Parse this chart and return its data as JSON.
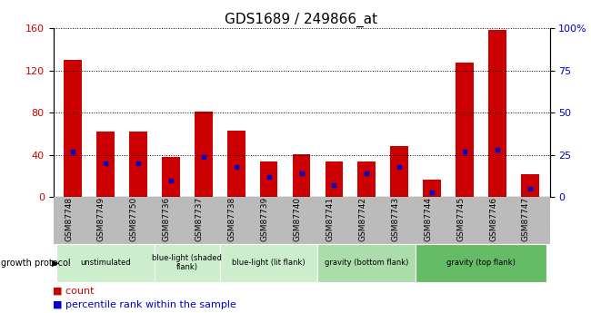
{
  "title": "GDS1689 / 249866_at",
  "samples": [
    "GSM87748",
    "GSM87749",
    "GSM87750",
    "GSM87736",
    "GSM87737",
    "GSM87738",
    "GSM87739",
    "GSM87740",
    "GSM87741",
    "GSM87742",
    "GSM87743",
    "GSM87744",
    "GSM87745",
    "GSM87746",
    "GSM87747"
  ],
  "counts": [
    130,
    62,
    62,
    38,
    81,
    63,
    34,
    41,
    34,
    34,
    48,
    17,
    127,
    158,
    22
  ],
  "percentiles": [
    27,
    20,
    20,
    10,
    24,
    18,
    12,
    14,
    7,
    14,
    18,
    3,
    27,
    28,
    5
  ],
  "ylim_left": [
    0,
    160
  ],
  "ylim_right": [
    0,
    100
  ],
  "yticks_left": [
    0,
    40,
    80,
    120,
    160
  ],
  "yticks_right": [
    0,
    25,
    50,
    75,
    100
  ],
  "yticklabels_right": [
    "0",
    "25",
    "50",
    "75",
    "100%"
  ],
  "bar_color": "#cc0000",
  "dot_color": "#0000cc",
  "bar_width": 0.55,
  "group_info": [
    {
      "samples_idx": [
        0,
        1,
        2
      ],
      "label": "unstimulated",
      "color": "#cceecc"
    },
    {
      "samples_idx": [
        3,
        4
      ],
      "label": "blue-light (shaded\nflank)",
      "color": "#cceecc"
    },
    {
      "samples_idx": [
        5,
        6,
        7
      ],
      "label": "blue-light (lit flank)",
      "color": "#cceecc"
    },
    {
      "samples_idx": [
        8,
        9,
        10
      ],
      "label": "gravity (bottom flank)",
      "color": "#aaddaa"
    },
    {
      "samples_idx": [
        11,
        12,
        13,
        14
      ],
      "label": "gravity (top flank)",
      "color": "#66bb66"
    }
  ],
  "group_protocol_label": "growth protocol",
  "legend_count_label": "count",
  "legend_percentile_label": "percentile rank within the sample",
  "tick_bg_color": "#bbbbbb",
  "title_fontsize": 11,
  "legend_fontsize": 8
}
